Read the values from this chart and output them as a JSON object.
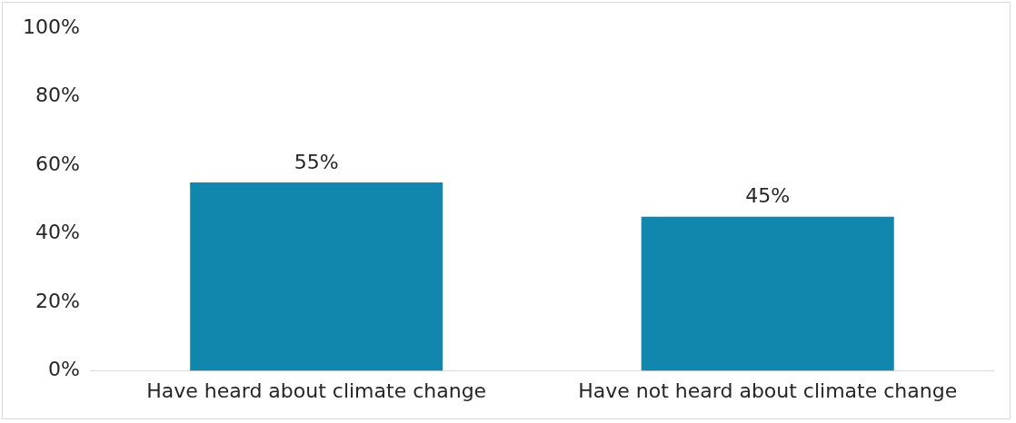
{
  "chart_data": {
    "type": "bar",
    "categories": [
      "Have heard about climate change",
      "Have not heard about climate change"
    ],
    "values": [
      55,
      45
    ],
    "color": "#1287ad",
    "value_labels": [
      "55%",
      "45%"
    ],
    "ylim": [
      0,
      100
    ],
    "yticks": [
      {
        "value": 0,
        "label": "0%"
      },
      {
        "value": 20,
        "label": "20%"
      },
      {
        "value": 40,
        "label": "40%"
      },
      {
        "value": 60,
        "label": "60%"
      },
      {
        "value": 80,
        "label": "80%"
      },
      {
        "value": 100,
        "label": "100%"
      }
    ],
    "grid": false,
    "legend": false
  }
}
